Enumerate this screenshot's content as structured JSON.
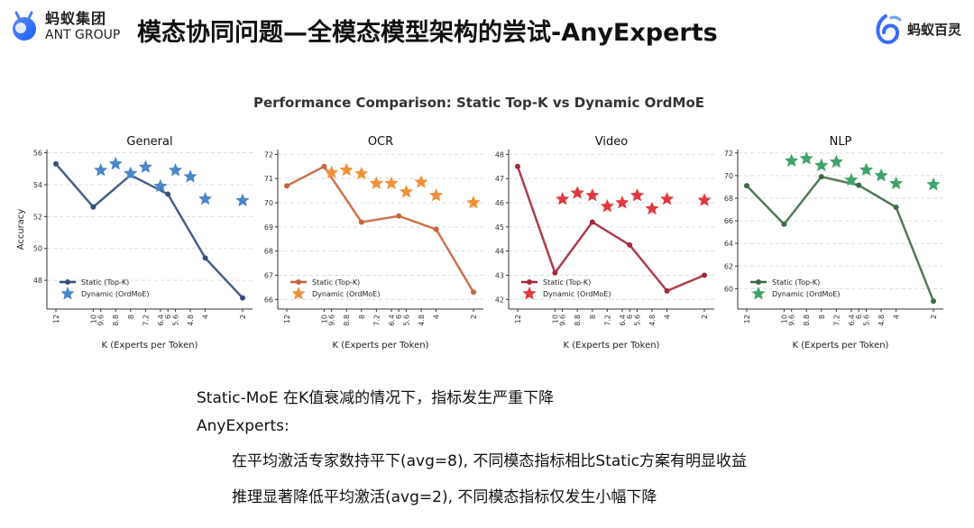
{
  "header": {
    "logo_left_cn": "蚂蚁集团",
    "logo_left_en": "ANT GROUP",
    "title": "模态协同问题—全模态模型架构的尝试-AnyExperts",
    "logo_right_cn": "蚂蚁百灵"
  },
  "figure_title": "Performance Comparison: Static Top-K vs Dynamic OrdMoE",
  "chart_data": [
    {
      "type": "line",
      "title": "General",
      "xlabel": "K (Experts per Token)",
      "ylabel": "Accuracy",
      "ylim": [
        46.2,
        56.2
      ],
      "yticks": [
        48,
        50,
        52,
        54,
        56
      ],
      "line_color": "#34507a",
      "star_color": "#4a86c8",
      "series": [
        {
          "name": "Static (Top-K)",
          "x": [
            12,
            10,
            8,
            6,
            4,
            2
          ],
          "y": [
            55.3,
            52.6,
            54.6,
            53.4,
            49.4,
            46.9
          ]
        },
        {
          "name": "Dynamic (OrdMoE)",
          "x": [
            9.6,
            8.8,
            8,
            7.2,
            6.4,
            5.6,
            4.8,
            4,
            2
          ],
          "y": [
            54.9,
            55.3,
            54.7,
            55.1,
            53.9,
            54.9,
            54.5,
            53.1,
            53.0
          ]
        }
      ]
    },
    {
      "type": "line",
      "title": "OCR",
      "xlabel": "K (Experts per Token)",
      "ylabel": "",
      "ylim": [
        65.6,
        72.2
      ],
      "yticks": [
        66,
        67,
        68,
        69,
        70,
        71,
        72
      ],
      "line_color": "#c8643a",
      "star_color": "#f0913a",
      "series": [
        {
          "name": "Static (Top-K)",
          "x": [
            12,
            10,
            8,
            6,
            4,
            2
          ],
          "y": [
            70.7,
            71.5,
            69.2,
            69.45,
            68.9,
            66.3
          ]
        },
        {
          "name": "Dynamic (OrdMoE)",
          "x": [
            9.6,
            8.8,
            8,
            7.2,
            6.4,
            5.6,
            4.8,
            4,
            2
          ],
          "y": [
            71.25,
            71.35,
            71.2,
            70.8,
            70.8,
            70.45,
            70.85,
            70.3,
            70.0
          ]
        }
      ]
    },
    {
      "type": "line",
      "title": "Video",
      "xlabel": "K (Experts per Token)",
      "ylabel": "",
      "ylim": [
        41.6,
        48.2
      ],
      "yticks": [
        42,
        43,
        44,
        45,
        46,
        47,
        48
      ],
      "line_color": "#a5283a",
      "star_color": "#e0383e",
      "series": [
        {
          "name": "Static (Top-K)",
          "x": [
            12,
            10,
            8,
            6,
            4,
            2
          ],
          "y": [
            47.5,
            43.1,
            45.2,
            44.25,
            42.35,
            43.0
          ]
        },
        {
          "name": "Dynamic (OrdMoE)",
          "x": [
            9.6,
            8.8,
            8,
            7.2,
            6.4,
            5.6,
            4.8,
            4,
            2
          ],
          "y": [
            46.15,
            46.4,
            46.3,
            45.85,
            46.0,
            46.3,
            45.75,
            46.15,
            46.1
          ]
        }
      ]
    },
    {
      "type": "line",
      "title": "NLP",
      "xlabel": "K (Experts per Token)",
      "ylabel": "",
      "ylim": [
        58.2,
        72.3
      ],
      "yticks": [
        60,
        62,
        64,
        66,
        68,
        70,
        72
      ],
      "line_color": "#3d6b45",
      "star_color": "#3fa36a",
      "series": [
        {
          "name": "Static (Top-K)",
          "x": [
            12,
            10,
            8,
            6,
            4,
            2
          ],
          "y": [
            69.1,
            65.7,
            69.9,
            69.15,
            67.2,
            58.9
          ]
        },
        {
          "name": "Dynamic (OrdMoE)",
          "x": [
            9.6,
            8.8,
            8,
            7.2,
            6.4,
            5.6,
            4.8,
            4,
            2
          ],
          "y": [
            71.3,
            71.5,
            70.9,
            71.2,
            69.6,
            70.5,
            70.0,
            69.3,
            69.2
          ]
        }
      ]
    }
  ],
  "xticks": [
    "12",
    "10",
    "9.6",
    "8.8",
    "8",
    "7.2",
    "6.4",
    "6",
    "5.6",
    "4.8",
    "4",
    "2"
  ],
  "bullets": [
    "Static-MoE 在K值衰减的情况下，指标发生严重下降",
    "AnyExperts:",
    "在平均激活专家数持平下(avg=8), 不同模态指标相比Static方案有明显收益",
    "推理显著降低平均激活(avg=2), 不同模态指标仅发生小幅下降"
  ]
}
